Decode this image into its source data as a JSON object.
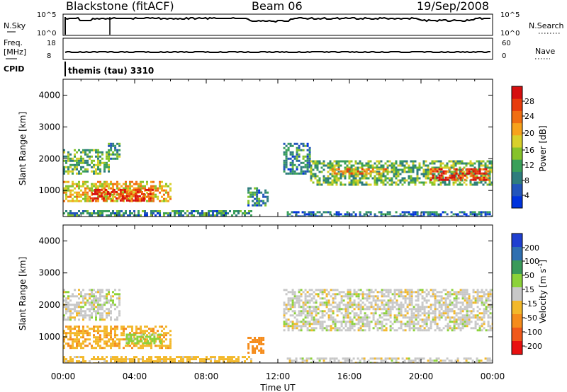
{
  "header": {
    "station": "Blackstone (fitACF)",
    "beam": "Beam 06",
    "date": "19/Sep/2008"
  },
  "params": {
    "nsky_label": "N.Sky",
    "nsearch_label": "N.Search",
    "freq_label_1": "Freq.",
    "freq_label_2": "[MHz]",
    "nave_label": "Nave",
    "cpid_label": "CPID",
    "cpid_value": "themis (tau) 3310",
    "nsky_ticks": [
      "10^5",
      "10^0"
    ],
    "nsearch_ticks": [
      "10^5",
      "10^0"
    ],
    "freq_ticks": [
      "18",
      "8"
    ],
    "nave_ticks": [
      "60",
      "0"
    ]
  },
  "power_colorbar": {
    "label": "Power [dB]",
    "ticks": [
      "28",
      "24",
      "20",
      "16",
      "12",
      "8",
      "4"
    ],
    "colors": [
      "#0033dd",
      "#2255bb",
      "#2e7d7d",
      "#3aa05a",
      "#86c32a",
      "#d8d02a",
      "#f7a21c",
      "#f06e12",
      "#e83c0c",
      "#d60f0f"
    ]
  },
  "velocity_colorbar": {
    "label_main": "Velocity [m s",
    "label_sup": "-1",
    "label_end": "]",
    "ticks": [
      "200",
      "100",
      "50",
      "15",
      "-15",
      "-50",
      "-100",
      "-200"
    ],
    "colors": [
      "#1f3fd0",
      "#2f6fb0",
      "#3a9a5a",
      "#8cd23a",
      "#c8c8c8",
      "#f3b82a",
      "#f58c1c",
      "#f0581a",
      "#e81010"
    ]
  },
  "axes": {
    "ylabel": "Slant Range [km]",
    "xlabel": "Time UT",
    "yticks": [
      "4000",
      "3000",
      "2000",
      "1000"
    ],
    "xticks": [
      "00:00",
      "04:00",
      "08:00",
      "12:00",
      "16:00",
      "20:00",
      "00:00"
    ]
  },
  "chart_data": [
    {
      "type": "heatmap",
      "panel": "power",
      "x_range_hours": [
        0,
        24
      ],
      "ylim_km": [
        180,
        4500
      ],
      "value_range_db": [
        0,
        30
      ],
      "regions": [
        {
          "t": [
            0.0,
            2.5
          ],
          "r": [
            1550,
            2300
          ],
          "value": 12
        },
        {
          "t": [
            2.5,
            3.2
          ],
          "r": [
            2000,
            2500
          ],
          "value": 10
        },
        {
          "t": [
            0.0,
            6.0
          ],
          "r": [
            650,
            1300
          ],
          "value": 18
        },
        {
          "t": [
            1.5,
            5.0
          ],
          "r": [
            650,
            1050
          ],
          "value": 27
        },
        {
          "t": [
            0.0,
            10.5
          ],
          "r": [
            200,
            380
          ],
          "value": 8
        },
        {
          "t": [
            10.3,
            11.4
          ],
          "r": [
            500,
            1100
          ],
          "value": 8
        },
        {
          "t": [
            12.3,
            13.8
          ],
          "r": [
            1500,
            2500
          ],
          "value": 8
        },
        {
          "t": [
            13.8,
            24.0
          ],
          "r": [
            1150,
            1950
          ],
          "value": 12
        },
        {
          "t": [
            15.0,
            18.0
          ],
          "r": [
            1500,
            1700
          ],
          "value": 20
        },
        {
          "t": [
            20.5,
            23.8
          ],
          "r": [
            1300,
            1700
          ],
          "value": 26
        },
        {
          "t": [
            12.5,
            24.0
          ],
          "r": [
            200,
            350
          ],
          "value": 6
        }
      ]
    },
    {
      "type": "heatmap",
      "panel": "velocity",
      "x_range_hours": [
        0,
        24
      ],
      "ylim_km": [
        180,
        4500
      ],
      "value_range_ms": [
        -200,
        200
      ],
      "regions": [
        {
          "t": [
            0.0,
            3.2
          ],
          "r": [
            1550,
            2500
          ],
          "value": 0
        },
        {
          "t": [
            0.0,
            6.0
          ],
          "r": [
            650,
            1350
          ],
          "value": -40
        },
        {
          "t": [
            3.5,
            5.5
          ],
          "r": [
            800,
            1100
          ],
          "value": 30
        },
        {
          "t": [
            0.0,
            10.5
          ],
          "r": [
            200,
            400
          ],
          "value": -30
        },
        {
          "t": [
            10.3,
            11.2
          ],
          "r": [
            500,
            1000
          ],
          "value": -80
        },
        {
          "t": [
            12.3,
            24.0
          ],
          "r": [
            1200,
            2500
          ],
          "value": 0
        },
        {
          "t": [
            12.5,
            24.0
          ],
          "r": [
            200,
            350
          ],
          "value": 0
        }
      ]
    }
  ]
}
